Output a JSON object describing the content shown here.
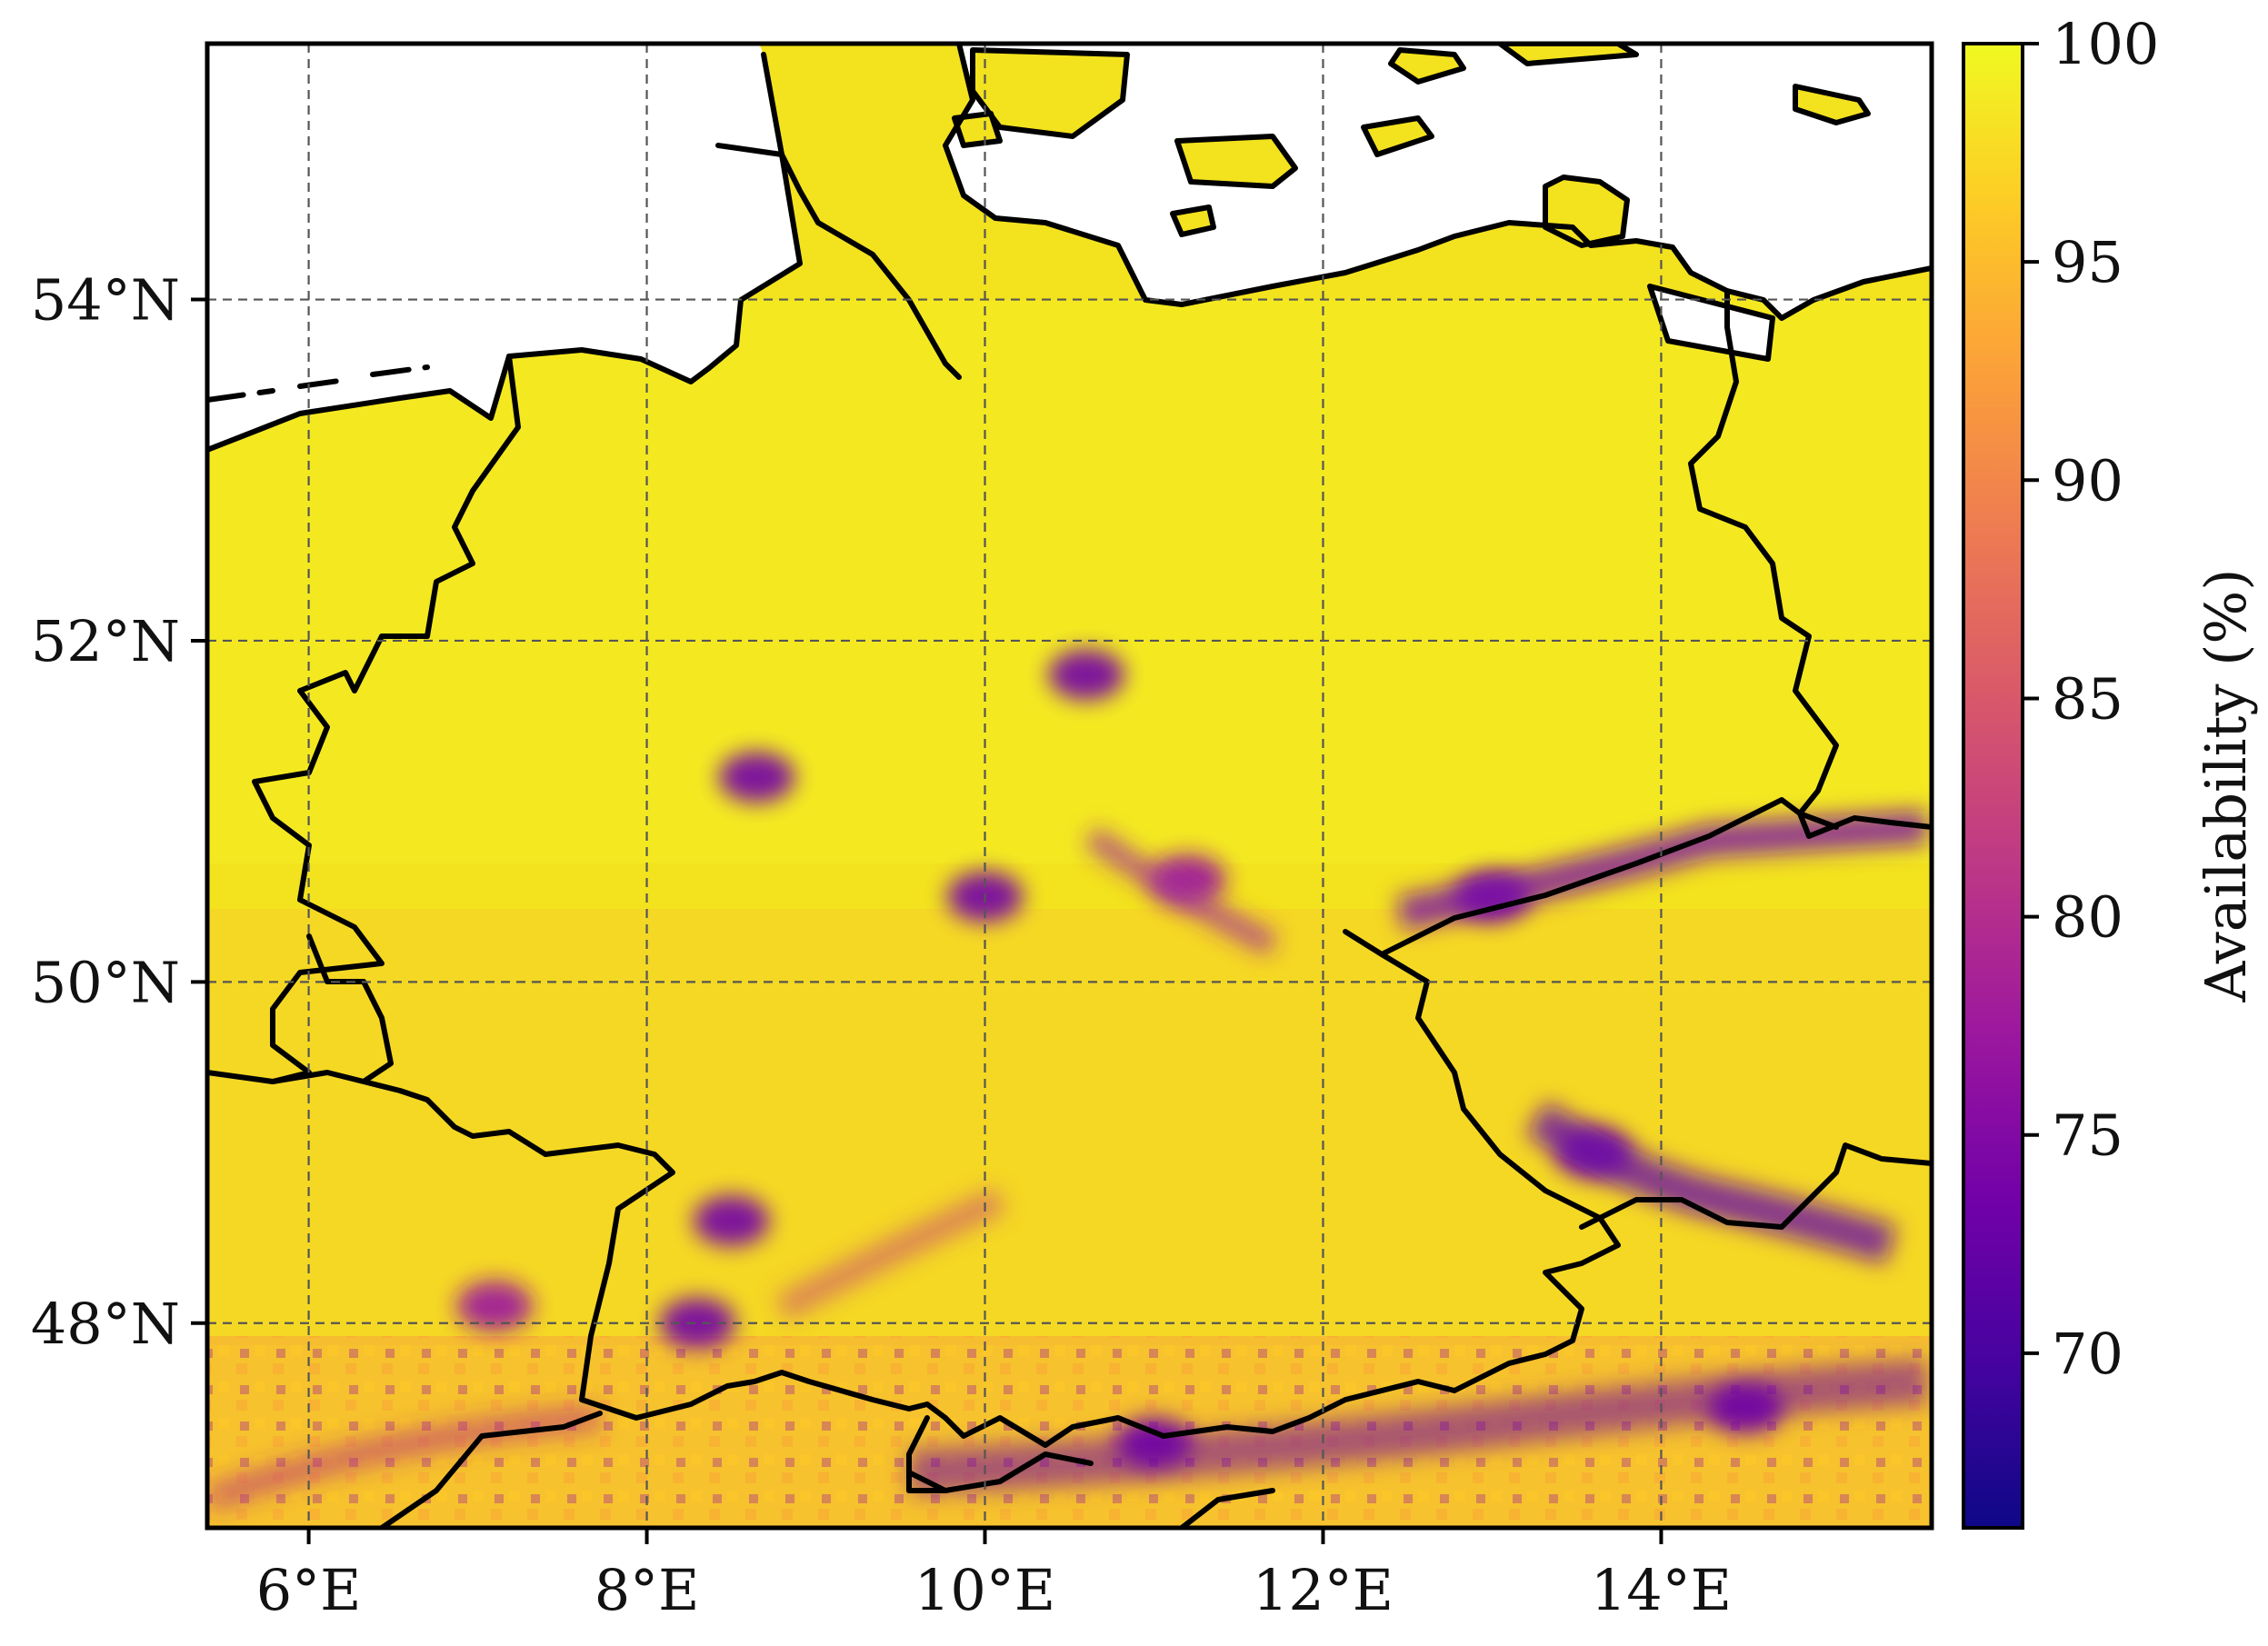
{
  "map": {
    "lon_range": [
      5.4,
      15.6
    ],
    "lat_range": [
      46.8,
      55.5
    ],
    "x_ticks": [
      {
        "value": 6,
        "label": "6°E"
      },
      {
        "value": 8,
        "label": "8°E"
      },
      {
        "value": 10,
        "label": "10°E"
      },
      {
        "value": 12,
        "label": "12°E"
      },
      {
        "value": 14,
        "label": "14°E"
      }
    ],
    "y_ticks": [
      {
        "value": 54,
        "label": "54°N"
      },
      {
        "value": 52,
        "label": "52°N"
      },
      {
        "value": 50,
        "label": "50°N"
      },
      {
        "value": 48,
        "label": "48°N"
      }
    ],
    "gridlines": true
  },
  "colorbar": {
    "label": "Availability (%)",
    "colormap": "plasma",
    "range": [
      66,
      100
    ],
    "ticks": [
      100,
      95,
      90,
      85,
      80,
      75,
      70
    ],
    "colors": [
      "#0d0887",
      "#46039f",
      "#7201a8",
      "#9c179e",
      "#bd3786",
      "#d8576b",
      "#ed7953",
      "#fb9f3a",
      "#fdca26",
      "#f0f921"
    ]
  },
  "low_availability_regions": [
    {
      "lon": 8.65,
      "lat": 51.2,
      "value": 74
    },
    {
      "lon": 10.6,
      "lat": 51.8,
      "value": 75
    },
    {
      "lon": 11.2,
      "lat": 50.6,
      "value": 76
    },
    {
      "lon": 10.0,
      "lat": 50.5,
      "value": 75
    },
    {
      "lon": 13.0,
      "lat": 50.5,
      "value": 72
    },
    {
      "lon": 13.6,
      "lat": 49.0,
      "value": 73
    },
    {
      "lon": 8.3,
      "lat": 48.0,
      "value": 72
    },
    {
      "lon": 8.5,
      "lat": 48.6,
      "value": 74
    },
    {
      "lon": 7.1,
      "lat": 48.1,
      "value": 76
    },
    {
      "lon": 11.0,
      "lat": 47.3,
      "value": 73
    },
    {
      "lon": 14.5,
      "lat": 47.5,
      "value": 72
    }
  ]
}
